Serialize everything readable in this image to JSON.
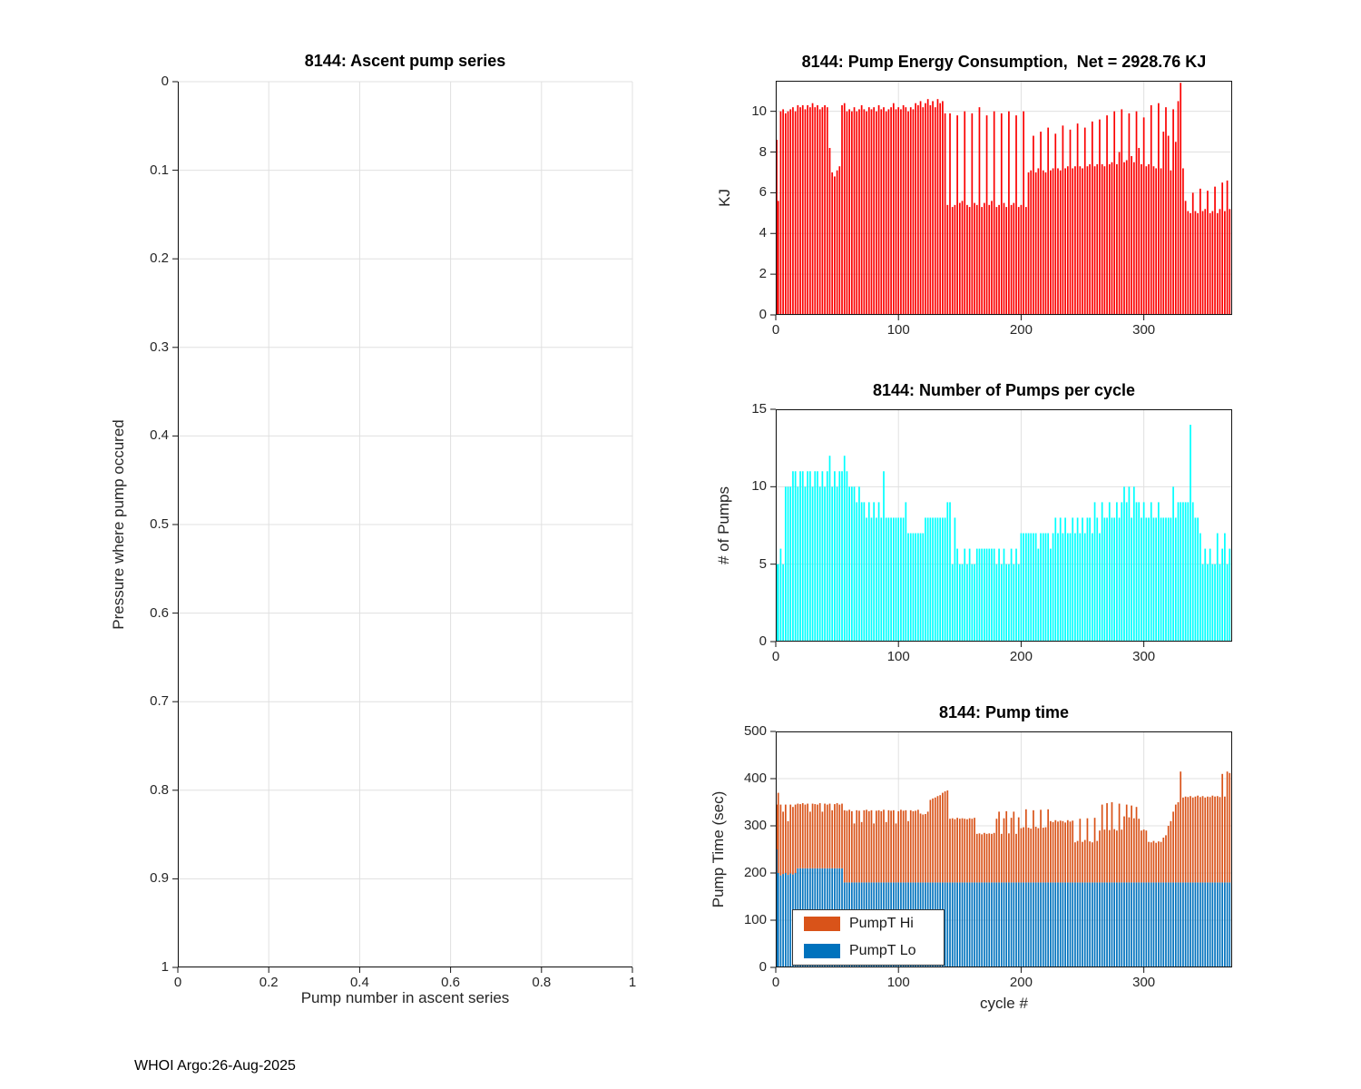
{
  "figure": {
    "footer_text": "WHOI Argo:26-Aug-2025"
  },
  "colors": {
    "red": "#fb0000",
    "cyan": "#00ffff",
    "orange": "#d95319",
    "blue": "#0072bd",
    "grid": "#e0e0e0",
    "axis": "#151515",
    "tick_label": "#262626"
  },
  "chart_data": [
    {
      "id": "ascent",
      "type": "bar",
      "title": "8144: Ascent pump series",
      "xlabel": "Pump number in ascent series",
      "ylabel": "Pressure where pump occured",
      "xlim": [
        0,
        1
      ],
      "ylim": [
        0,
        1
      ],
      "y_reversed": true,
      "grid": true,
      "xticks": [
        0,
        0.2,
        0.4,
        0.6,
        0.8,
        1
      ],
      "xtick_labels": [
        "0",
        "0.2",
        "0.4",
        "0.6",
        "0.8",
        "1"
      ],
      "yticks": [
        0,
        0.1,
        0.2,
        0.3,
        0.4,
        0.5,
        0.6,
        0.7,
        0.8,
        0.9,
        1
      ],
      "ytick_labels": [
        "0",
        "0.1",
        "0.2",
        "0.3",
        "0.4",
        "0.5",
        "0.6",
        "0.7",
        "0.8",
        "0.9",
        "1"
      ],
      "x_start": 0,
      "x_step": 1,
      "values": []
    },
    {
      "id": "energy",
      "type": "bar",
      "title": "8144: Pump Energy Consumption,  Net = 2928.76 KJ",
      "xlabel": "",
      "ylabel": "KJ",
      "bar_color_key": "red",
      "xlim": [
        0,
        372
      ],
      "ylim": [
        0,
        11.5
      ],
      "grid": true,
      "xticks": [
        0,
        100,
        200,
        300
      ],
      "xtick_labels": [
        "0",
        "100",
        "200",
        "300"
      ],
      "yticks": [
        0,
        2,
        4,
        6,
        8,
        10
      ],
      "ytick_labels": [
        "0",
        "2",
        "4",
        "6",
        "8",
        "10"
      ],
      "x_start": 0,
      "x_step": 2,
      "values": [
        8.6,
        5.6,
        10.0,
        10.1,
        9.9,
        10.0,
        10.1,
        10.2,
        10.0,
        10.3,
        10.2,
        10.3,
        10.1,
        10.3,
        10.2,
        10.4,
        10.2,
        10.3,
        10.1,
        10.2,
        10.3,
        10.2,
        8.2,
        7.0,
        6.8,
        7.1,
        7.3,
        10.3,
        10.4,
        10.0,
        10.1,
        10.0,
        10.2,
        10.0,
        10.1,
        10.3,
        10.1,
        10.0,
        10.2,
        10.1,
        10.2,
        10.0,
        10.3,
        10.1,
        10.2,
        10.0,
        10.1,
        10.2,
        10.4,
        10.1,
        10.2,
        10.1,
        10.3,
        10.2,
        10.0,
        10.2,
        10.1,
        10.4,
        10.3,
        10.5,
        10.2,
        10.4,
        10.6,
        10.3,
        10.5,
        10.2,
        10.6,
        10.4,
        10.5,
        9.9,
        5.4,
        9.9,
        5.3,
        5.4,
        9.8,
        5.5,
        5.6,
        10.0,
        5.4,
        5.3,
        9.9,
        5.5,
        5.4,
        10.2,
        5.3,
        5.5,
        9.8,
        5.4,
        5.6,
        10.0,
        5.3,
        5.4,
        9.9,
        5.5,
        5.3,
        10.0,
        5.4,
        5.5,
        9.8,
        5.3,
        5.4,
        10.0,
        5.3,
        7.0,
        7.1,
        8.8,
        7.0,
        7.2,
        9.0,
        7.1,
        7.0,
        9.2,
        7.1,
        7.2,
        8.9,
        7.2,
        7.1,
        9.3,
        7.2,
        7.3,
        9.1,
        7.2,
        7.3,
        9.4,
        7.3,
        7.2,
        9.2,
        7.3,
        7.4,
        9.5,
        7.3,
        7.4,
        9.6,
        7.4,
        7.3,
        9.8,
        7.4,
        7.5,
        10.0,
        7.4,
        8.0,
        10.1,
        7.5,
        7.6,
        9.9,
        7.8,
        7.5,
        10.0,
        8.2,
        7.4,
        9.7,
        7.3,
        7.4,
        10.3,
        7.3,
        7.2,
        10.4,
        7.2,
        9.0,
        10.2,
        8.8,
        7.1,
        10.1,
        8.5,
        10.5,
        11.4,
        7.2,
        5.6,
        5.1,
        5.0,
        6.0,
        5.1,
        5.0,
        6.2,
        5.1,
        5.2,
        6.1,
        5.0,
        5.1,
        6.3,
        5.0,
        5.2,
        6.5,
        5.1,
        6.6,
        5.2
      ]
    },
    {
      "id": "pumps",
      "type": "bar",
      "title": "8144: Number of Pumps per cycle",
      "xlabel": "",
      "ylabel": "# of Pumps",
      "bar_color_key": "cyan",
      "xlim": [
        0,
        372
      ],
      "ylim": [
        0,
        15
      ],
      "grid": true,
      "xticks": [
        0,
        100,
        200,
        300
      ],
      "xtick_labels": [
        "0",
        "100",
        "200",
        "300"
      ],
      "yticks": [
        0,
        5,
        10,
        15
      ],
      "ytick_labels": [
        "0",
        "5",
        "10",
        "15"
      ],
      "x_start": 0,
      "x_step": 2,
      "values": [
        5,
        5,
        6,
        5,
        10,
        10,
        10,
        11,
        11,
        10,
        11,
        11,
        10,
        11,
        11,
        10,
        11,
        11,
        10,
        11,
        10,
        11,
        12,
        10,
        11,
        10,
        11,
        11,
        12,
        11,
        10,
        10,
        10,
        9,
        10,
        9,
        9,
        8,
        9,
        8,
        9,
        8,
        9,
        8,
        11,
        8,
        8,
        8,
        8,
        8,
        8,
        8,
        8,
        9,
        7,
        7,
        7,
        7,
        7,
        7,
        7,
        8,
        8,
        8,
        8,
        8,
        8,
        8,
        8,
        8,
        9,
        9,
        5,
        8,
        6,
        5,
        5,
        6,
        5,
        6,
        5,
        5,
        6,
        6,
        6,
        6,
        6,
        6,
        6,
        6,
        5,
        6,
        5,
        6,
        5,
        5,
        6,
        5,
        6,
        5,
        7,
        7,
        7,
        7,
        7,
        7,
        7,
        6,
        7,
        7,
        7,
        7,
        6,
        7,
        8,
        7,
        8,
        7,
        8,
        7,
        7,
        8,
        7,
        8,
        7,
        8,
        7,
        8,
        8,
        7,
        9,
        8,
        7,
        9,
        8,
        8,
        9,
        8,
        8,
        9,
        8,
        9,
        10,
        9,
        10,
        8,
        10,
        9,
        9,
        8,
        9,
        8,
        8,
        9,
        8,
        8,
        9,
        8,
        8,
        8,
        8,
        8,
        10,
        8,
        9,
        9,
        9,
        9,
        9,
        14,
        9,
        8,
        8,
        7,
        5,
        6,
        5,
        6,
        5,
        5,
        7,
        5,
        6,
        7,
        5,
        6
      ]
    },
    {
      "id": "pumptime",
      "type": "stacked-bar",
      "title": "8144: Pump time",
      "xlabel": "cycle #",
      "ylabel": "Pump Time (sec)",
      "lo_color_key": "blue",
      "hi_color_key": "orange",
      "legend": [
        {
          "label": "PumpT Hi",
          "color": "#d95319"
        },
        {
          "label": "PumpT Lo",
          "color": "#0072bd"
        }
      ],
      "xlim": [
        0,
        372
      ],
      "ylim": [
        0,
        500
      ],
      "grid": true,
      "xticks": [
        0,
        100,
        200,
        300
      ],
      "xtick_labels": [
        "0",
        "100",
        "200",
        "300"
      ],
      "yticks": [
        0,
        100,
        200,
        300,
        400,
        500
      ],
      "ytick_labels": [
        "0",
        "100",
        "200",
        "300",
        "400",
        "500"
      ],
      "x_start": 0,
      "x_step": 2,
      "lo": [
        250,
        200,
        195,
        198,
        200,
        196,
        199,
        197,
        200,
        210,
        210,
        210,
        210,
        210,
        210,
        210,
        210,
        210,
        210,
        210,
        210,
        210,
        210,
        210,
        210,
        210,
        210,
        210,
        180,
        180,
        180,
        180,
        180,
        180,
        180,
        180,
        180,
        180,
        180,
        180,
        180,
        180,
        180,
        180,
        180,
        180,
        180,
        180,
        180,
        180,
        180,
        180,
        180,
        180,
        180,
        180,
        180,
        180,
        180,
        180,
        180,
        180,
        180,
        180,
        180,
        180,
        180,
        180,
        180,
        180,
        180,
        180,
        180,
        180,
        180,
        180,
        180,
        180,
        180,
        180,
        180,
        180,
        180,
        180,
        180,
        180,
        180,
        180,
        180,
        180,
        180,
        180,
        180,
        180,
        180,
        180,
        180,
        180,
        180,
        180,
        180,
        180,
        180,
        180,
        180,
        180,
        180,
        180,
        180,
        180,
        180,
        180,
        180,
        180,
        180,
        180,
        180,
        180,
        180,
        180,
        180,
        180,
        180,
        180,
        180,
        180,
        180,
        180,
        180,
        180,
        180,
        180,
        180,
        180,
        180,
        180,
        180,
        180,
        180,
        180,
        180,
        180,
        180,
        180,
        180,
        180,
        180,
        180,
        180,
        180,
        180,
        180,
        180,
        180,
        180,
        180,
        180,
        180,
        180,
        180,
        180,
        180,
        180,
        180,
        180,
        180,
        180,
        180,
        180,
        180,
        180,
        180,
        180,
        180,
        180,
        180,
        180,
        180,
        180,
        180,
        180,
        180,
        180,
        180,
        180,
        180
      ],
      "total": [
        345,
        370,
        345,
        330,
        345,
        310,
        345,
        340,
        345,
        347,
        346,
        348,
        345,
        347,
        330,
        347,
        346,
        345,
        348,
        330,
        347,
        345,
        347,
        333,
        346,
        348,
        345,
        347,
        333,
        332,
        334,
        331,
        305,
        333,
        332,
        308,
        333,
        334,
        331,
        333,
        305,
        332,
        333,
        331,
        334,
        308,
        333,
        332,
        333,
        305,
        331,
        334,
        332,
        333,
        310,
        333,
        331,
        332,
        334,
        326,
        324,
        325,
        330,
        355,
        358,
        360,
        363,
        365,
        370,
        373,
        375,
        315,
        316,
        314,
        317,
        315,
        316,
        315,
        314,
        316,
        315,
        317,
        283,
        284,
        282,
        285,
        283,
        284,
        283,
        285,
        315,
        330,
        283,
        316,
        331,
        284,
        317,
        330,
        283,
        318,
        295,
        297,
        335,
        296,
        294,
        333,
        298,
        295,
        334,
        296,
        297,
        335,
        310,
        308,
        312,
        309,
        311,
        310,
        307,
        312,
        309,
        311,
        265,
        268,
        315,
        266,
        270,
        316,
        267,
        265,
        317,
        268,
        290,
        345,
        292,
        348,
        291,
        350,
        293,
        290,
        347,
        292,
        320,
        345,
        318,
        343,
        316,
        340,
        315,
        290,
        292,
        290,
        266,
        265,
        268,
        264,
        267,
        266,
        275,
        280,
        300,
        310,
        330,
        345,
        350,
        415,
        360,
        362,
        361,
        363,
        360,
        362,
        364,
        361,
        363,
        360,
        362,
        361,
        364,
        362,
        363,
        361,
        410,
        362,
        415,
        412
      ]
    }
  ]
}
